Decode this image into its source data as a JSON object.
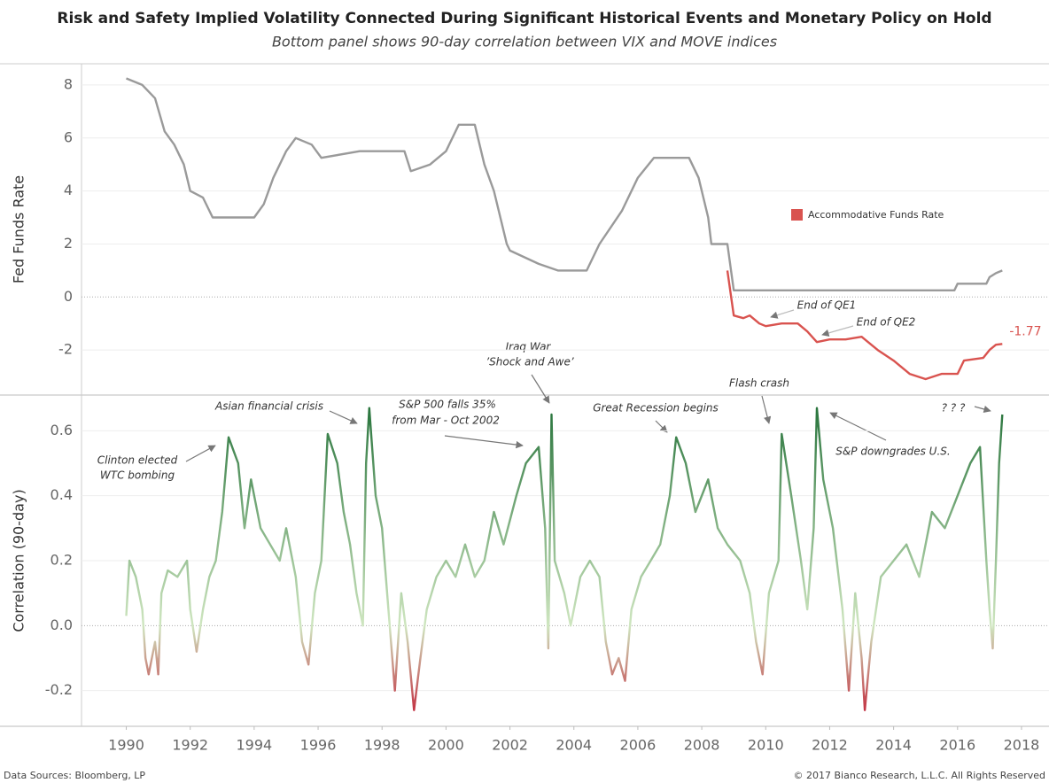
{
  "chart_data": [
    {
      "type": "line",
      "title": "Risk and Safety Implied Volatility Connected During Significant Historical Events and Monetary Policy on Hold",
      "subtitle": "Bottom panel shows 90-day correlation between VIX and MOVE indices",
      "y_label": "Fed Funds Rate",
      "xlim": [
        1988.6,
        2018.86
      ],
      "ylim": [
        -3.7,
        8.8
      ],
      "yticks": [
        -2,
        0,
        2,
        4,
        6,
        8
      ],
      "grid": true,
      "series": [
        {
          "color": "#9a9a9a",
          "x": [
            1990.0,
            1990.5,
            1990.9,
            1991.2,
            1991.5,
            1991.8,
            1992.0,
            1992.4,
            1992.7,
            1994.0,
            1994.3,
            1994.6,
            1995.0,
            1995.3,
            1995.8,
            1996.1,
            1997.3,
            1998.7,
            1998.9,
            1999.5,
            2000.0,
            2000.4,
            2000.9,
            2001.2,
            2001.5,
            2001.9,
            2002.0,
            2002.9,
            2003.5,
            2004.4,
            2004.8,
            2005.5,
            2006.0,
            2006.5,
            2007.6,
            2007.9,
            2008.2,
            2008.3,
            2008.8,
            2009.0,
            2015.9,
            2016.0,
            2016.9,
            2017.0,
            2017.2,
            2017.4
          ],
          "values": [
            8.25,
            8.0,
            7.5,
            6.25,
            5.75,
            5.0,
            4.0,
            3.75,
            3.0,
            3.0,
            3.5,
            4.5,
            5.5,
            6.0,
            5.75,
            5.25,
            5.5,
            5.5,
            4.75,
            5.0,
            5.5,
            6.5,
            6.5,
            5.0,
            4.0,
            2.0,
            1.75,
            1.25,
            1.0,
            1.0,
            2.0,
            3.25,
            4.5,
            5.25,
            5.25,
            4.5,
            3.0,
            2.0,
            2.0,
            0.25,
            0.25,
            0.5,
            0.5,
            0.75,
            0.9,
            1.0
          ]
        },
        {
          "name": "Accommodative Funds Rate",
          "color": "#d9534f",
          "x": [
            2008.8,
            2009.0,
            2009.3,
            2009.5,
            2009.8,
            2010.0,
            2010.5,
            2011.0,
            2011.3,
            2011.6,
            2012.0,
            2012.5,
            2013.0,
            2013.5,
            2014.0,
            2014.5,
            2015.0,
            2015.5,
            2016.0,
            2016.2,
            2016.8,
            2017.0,
            2017.2,
            2017.4
          ],
          "values": [
            1.0,
            -0.7,
            -0.8,
            -0.7,
            -1.0,
            -1.1,
            -1.0,
            -1.0,
            -1.3,
            -1.7,
            -1.6,
            -1.6,
            -1.5,
            -2.0,
            -2.4,
            -2.9,
            -3.1,
            -2.9,
            -2.9,
            -2.4,
            -2.3,
            -2.0,
            -1.8,
            -1.77
          ]
        }
      ],
      "annotations": [
        "End of QE1",
        "End of QE2"
      ]
    },
    {
      "type": "line",
      "y_label": "Correlation (90-day)",
      "xlim": [
        1988.6,
        2018.86
      ],
      "xticks": [
        1990,
        1992,
        1994,
        1996,
        1998,
        2000,
        2002,
        2004,
        2006,
        2008,
        2010,
        2012,
        2014,
        2016,
        2018
      ],
      "ylim": [
        -0.31,
        0.71
      ],
      "yticks": [
        -0.2,
        {
          "value": 0,
          "label": "0.0"
        },
        0.2,
        0.4,
        0.6
      ],
      "grid": true,
      "color_positive": "#1f6e35",
      "color_zero": "#cfe6c0",
      "color_negative": "#c0122c",
      "series": [
        {
          "x": [
            1990.0,
            1990.1,
            1990.3,
            1990.5,
            1990.6,
            1990.7,
            1990.9,
            1991.0,
            1991.1,
            1991.3,
            1991.6,
            1991.9,
            1992.0,
            1992.2,
            1992.4,
            1992.6,
            1992.8,
            1993.0,
            1993.2,
            1993.5,
            1993.7,
            1993.9,
            1994.2,
            1994.5,
            1994.8,
            1995.0,
            1995.3,
            1995.5,
            1995.7,
            1995.9,
            1996.1,
            1996.3,
            1996.6,
            1996.8,
            1997.0,
            1997.2,
            1997.4,
            1997.5,
            1997.6,
            1997.8,
            1998.0,
            1998.2,
            1998.4,
            1998.6,
            1998.8,
            1999.0,
            1999.2,
            1999.4,
            1999.7,
            2000.0,
            2000.3,
            2000.6,
            2000.9,
            2001.2,
            2001.5,
            2001.8,
            2002.2,
            2002.5,
            2002.9,
            2003.1,
            2003.2,
            2003.3,
            2003.4,
            2003.7,
            2003.9,
            2004.2,
            2004.5,
            2004.8,
            2005.0,
            2005.2,
            2005.4,
            2005.6,
            2005.8,
            2006.1,
            2006.4,
            2006.7,
            2007.0,
            2007.2,
            2007.5,
            2007.8,
            2008.2,
            2008.5,
            2008.8,
            2009.2,
            2009.5,
            2009.7,
            2009.9,
            2010.1,
            2010.4,
            2010.5,
            2010.8,
            2011.1,
            2011.3,
            2011.5,
            2011.6,
            2011.8,
            2012.1,
            2012.4,
            2012.6,
            2012.8,
            2013.0,
            2013.1,
            2013.3,
            2013.6,
            2014.0,
            2014.4,
            2014.8,
            2015.2,
            2015.6,
            2016.0,
            2016.4,
            2016.7,
            2016.9,
            2017.0,
            2017.1,
            2017.2,
            2017.3,
            2017.4
          ],
          "values": [
            0.03,
            0.2,
            0.15,
            0.05,
            -0.1,
            -0.15,
            -0.05,
            -0.15,
            0.1,
            0.17,
            0.15,
            0.2,
            0.05,
            -0.08,
            0.05,
            0.15,
            0.2,
            0.35,
            0.58,
            0.5,
            0.3,
            0.45,
            0.3,
            0.25,
            0.2,
            0.3,
            0.15,
            -0.05,
            -0.12,
            0.1,
            0.2,
            0.59,
            0.5,
            0.35,
            0.25,
            0.1,
            0.0,
            0.5,
            0.67,
            0.4,
            0.3,
            0.05,
            -0.2,
            0.1,
            -0.05,
            -0.26,
            -0.1,
            0.05,
            0.15,
            0.2,
            0.15,
            0.25,
            0.15,
            0.2,
            0.35,
            0.25,
            0.4,
            0.5,
            0.55,
            0.3,
            -0.07,
            0.65,
            0.2,
            0.1,
            0.0,
            0.15,
            0.2,
            0.15,
            -0.05,
            -0.15,
            -0.1,
            -0.17,
            0.05,
            0.15,
            0.2,
            0.25,
            0.4,
            0.58,
            0.5,
            0.35,
            0.45,
            0.3,
            0.25,
            0.2,
            0.1,
            -0.05,
            -0.15,
            0.1,
            0.2,
            0.59,
            0.4,
            0.2,
            0.05,
            0.3,
            0.67,
            0.45,
            0.3,
            0.05,
            -0.2,
            0.1,
            -0.1,
            -0.26,
            -0.05,
            0.15,
            0.2,
            0.25,
            0.15,
            0.35,
            0.3,
            0.4,
            0.5,
            0.55,
            0.2,
            0.05,
            -0.07,
            0.2,
            0.5,
            0.65
          ]
        }
      ],
      "annotations": [
        "Clinton elected",
        "WTC bombing",
        "Asian financial crisis",
        "S&P 500 falls 35%",
        "from Mar - Oct 2002",
        "Iraq War",
        "’Shock and Awe’",
        "Great Recession begins",
        "Flash crash",
        "S&P downgrades U.S.",
        "? ? ?"
      ]
    }
  ],
  "footer": {
    "source": "Data Sources: Bloomberg, LP",
    "copyright": "© 2017 Bianco Research, L.L.C. All Rights Reserved"
  }
}
